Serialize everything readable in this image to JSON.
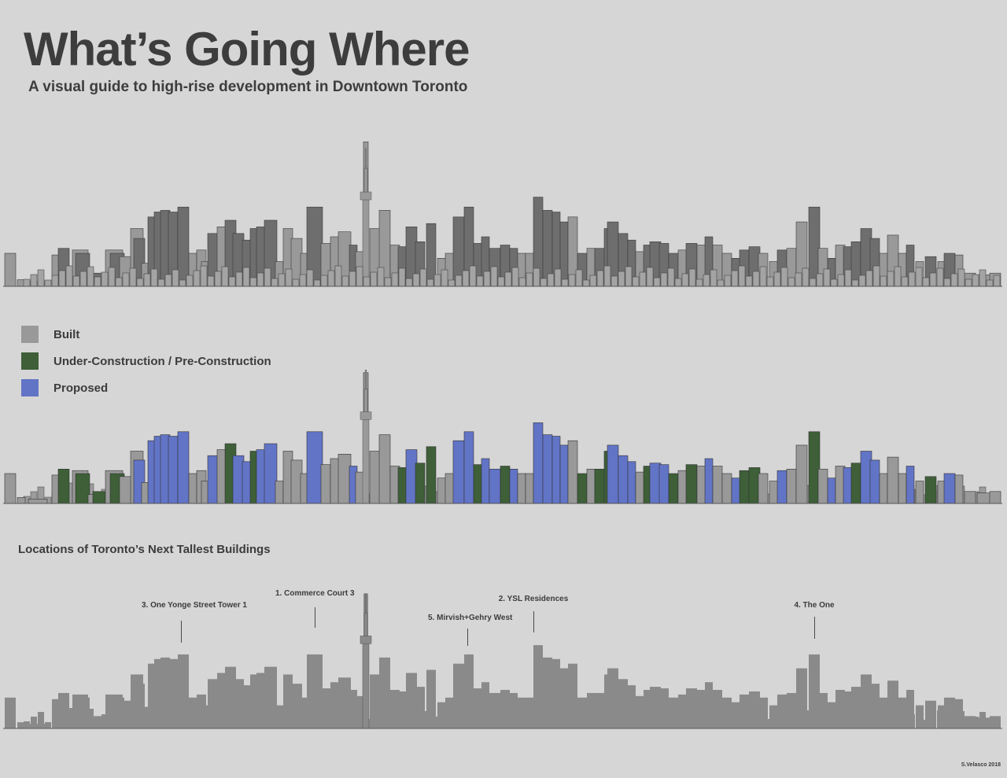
{
  "title": "What’s Going Where",
  "subtitle": "A visual guide to high-rise development in Downtown Toronto",
  "legend": {
    "items": [
      {
        "label": "Built",
        "color": "#999999"
      },
      {
        "label": "Under-Construction / Pre-Construction",
        "color": "#3e5f38"
      },
      {
        "label": "Proposed",
        "color": "#6274c6"
      }
    ]
  },
  "section_title": "Locations of Toronto’s Next Tallest Buildings",
  "callouts": [
    {
      "label": "3. One Yonge Street Tower 1"
    },
    {
      "label": "1. Commerce Court 3"
    },
    {
      "label": "5. Mirvish+Gehry West"
    },
    {
      "label": "2. YSL Residences"
    },
    {
      "label": "4. The One"
    }
  ],
  "credit": "S.Velasco 2018",
  "colors": {
    "background": "#d6d6d6",
    "built": "#999999",
    "built_dark": "#6e6e6e",
    "under_construction": "#3e5f38",
    "proposed": "#6274c6",
    "silhouette": "#8a8a8a"
  }
}
